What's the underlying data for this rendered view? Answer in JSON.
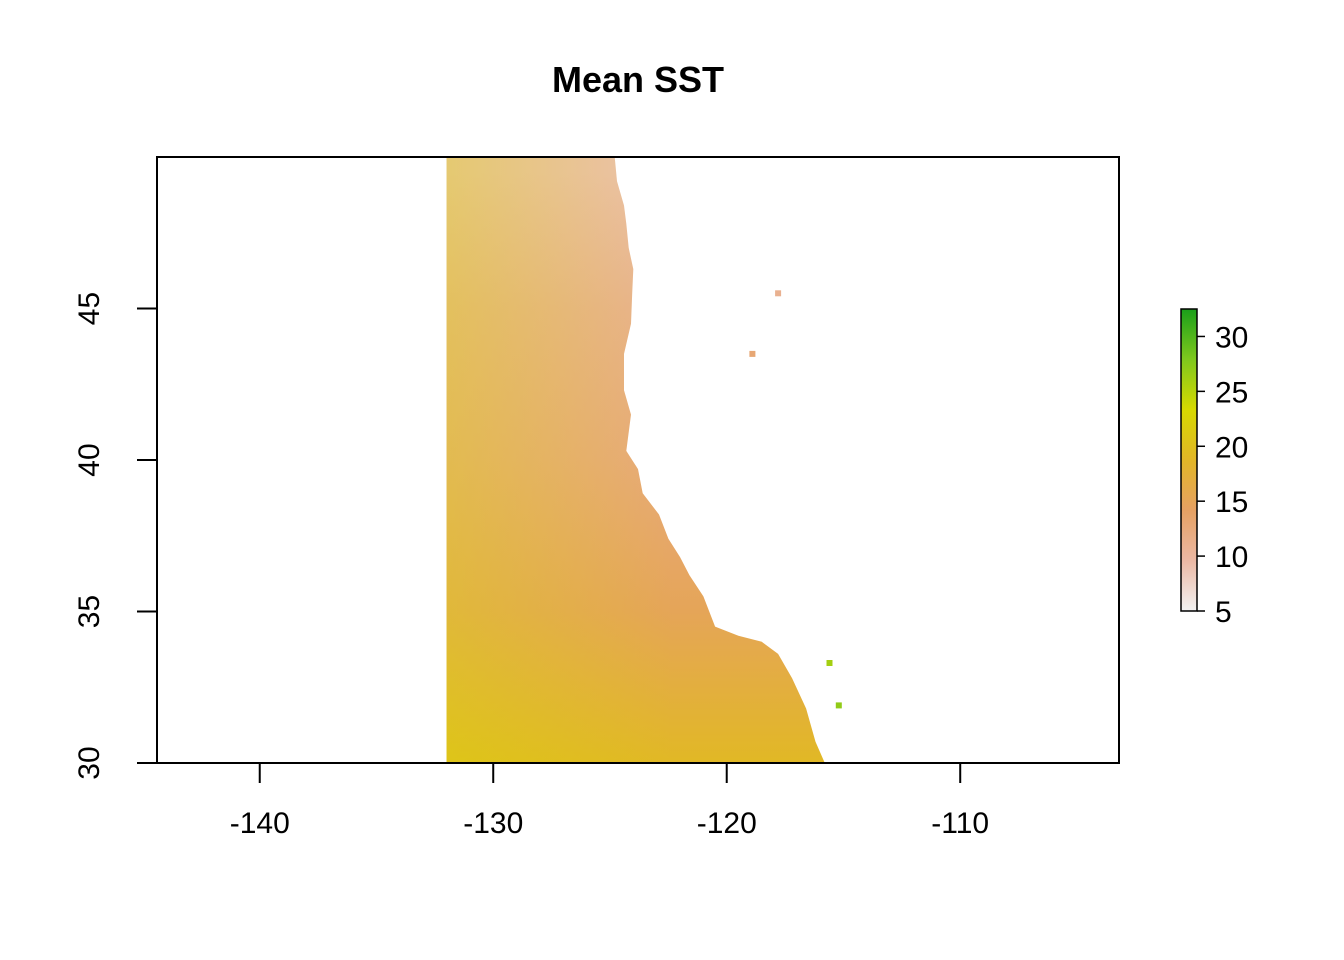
{
  "chart_data": {
    "type": "heatmap",
    "title": "Mean SST",
    "xlabel": "",
    "ylabel": "",
    "xlim": [
      -144.4,
      -103.2
    ],
    "ylim": [
      30,
      50
    ],
    "x_ticks": [
      -140,
      -130,
      -120,
      -110
    ],
    "x_tick_labels": [
      "-140",
      "-130",
      "-120",
      "-110"
    ],
    "y_ticks": [
      30,
      35,
      40,
      45
    ],
    "y_tick_labels": [
      "30",
      "35",
      "40",
      "45"
    ],
    "data_extent": {
      "lon": [
        -132,
        -115.5
      ],
      "lat": [
        30,
        50
      ]
    },
    "grid": false,
    "legend": {
      "placement": "right",
      "range": [
        5,
        32.5
      ],
      "ticks": [
        5,
        10,
        15,
        20,
        25,
        30
      ],
      "tick_labels": [
        "5",
        "10",
        "15",
        "20",
        "25",
        "30"
      ],
      "colors": [
        "#f2f2f2",
        "#ebb8a4",
        "#e6a163",
        "#e2b627",
        "#d7d900",
        "#7fc81d",
        "#1a9f1a"
      ]
    },
    "value_samples": [
      {
        "lat": 49.5,
        "sst": 9
      },
      {
        "lat": 45,
        "sst": 11
      },
      {
        "lat": 40,
        "sst": 12.5
      },
      {
        "lat": 35,
        "sst": 15
      },
      {
        "lat": 30,
        "sst": 19
      }
    ],
    "coastline": [
      [
        -124.8,
        50
      ],
      [
        -124.7,
        49.2
      ],
      [
        -124.4,
        48.4
      ],
      [
        -124.3,
        47.8
      ],
      [
        -124.2,
        47
      ],
      [
        -124,
        46.3
      ],
      [
        -124.05,
        45.5
      ],
      [
        -124.1,
        44.5
      ],
      [
        -124.4,
        43.5
      ],
      [
        -124.4,
        42.3
      ],
      [
        -124.1,
        41.5
      ],
      [
        -124.3,
        40.3
      ],
      [
        -123.8,
        39.7
      ],
      [
        -123.6,
        38.9
      ],
      [
        -122.9,
        38.2
      ],
      [
        -122.5,
        37.4
      ],
      [
        -122,
        36.8
      ],
      [
        -121.6,
        36.2
      ],
      [
        -121,
        35.5
      ],
      [
        -120.5,
        34.5
      ],
      [
        -119.5,
        34.2
      ],
      [
        -118.5,
        34
      ],
      [
        -117.8,
        33.6
      ],
      [
        -117.2,
        32.8
      ],
      [
        -116.6,
        31.8
      ],
      [
        -116.2,
        30.7
      ],
      [
        -115.8,
        30
      ]
    ],
    "islands": [
      {
        "lon": -115.6,
        "lat": 33.3,
        "sst": 26
      },
      {
        "lon": -115.2,
        "lat": 31.9,
        "sst": 27
      },
      {
        "lon": -118.9,
        "lat": 43.5,
        "sst": 13
      },
      {
        "lon": -117.8,
        "lat": 45.5,
        "sst": 11
      }
    ]
  }
}
